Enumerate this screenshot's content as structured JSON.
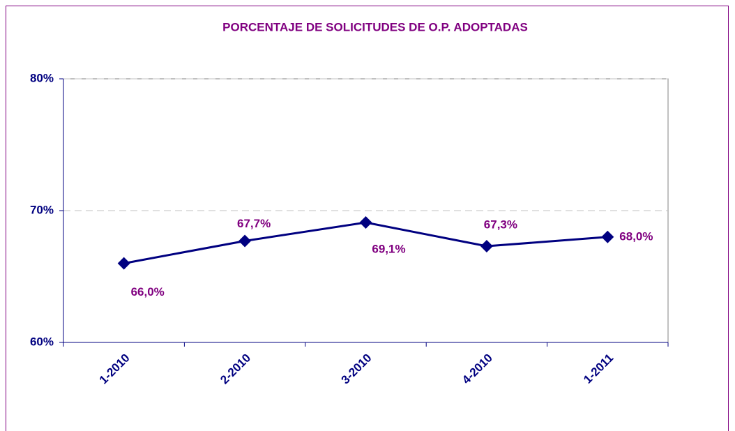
{
  "chart_data": {
    "type": "line",
    "title": "PORCENTAJE DE SOLICITUDES DE O.P. ADOPTADAS",
    "categories": [
      "1-2010",
      "2-2010",
      "3-2010",
      "4-2010",
      "1-2011"
    ],
    "series": [
      {
        "color": "#000080",
        "values": [
          66.0,
          67.7,
          69.1,
          67.3,
          68.0
        ],
        "value_labels": [
          "66,0%",
          "67,7%",
          "69,1%",
          "67,3%",
          "68,0%"
        ]
      }
    ],
    "ylim": [
      60,
      80
    ],
    "yticks": [
      {
        "value": 60,
        "label": "60%"
      },
      {
        "value": 70,
        "label": "70%"
      },
      {
        "value": 80,
        "label": "80%"
      }
    ],
    "grid": true
  }
}
